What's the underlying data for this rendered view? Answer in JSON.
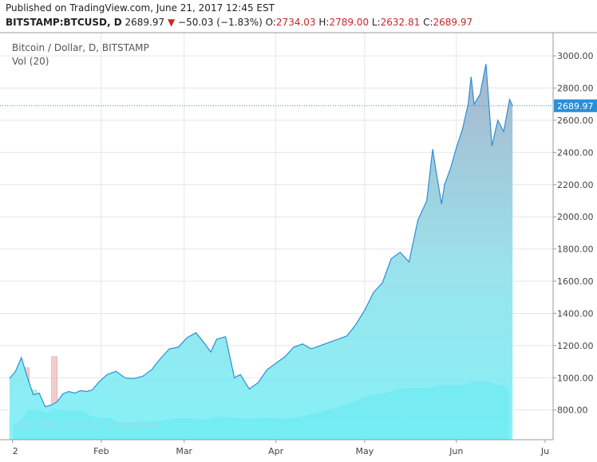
{
  "header": {
    "published_line": "Published on TradingView.com, June 21, 2017 12:45 EST",
    "symbol": "BITSTAMP:BTCUSD, D",
    "last": "2689.97",
    "change_arrow": "▼",
    "change": "−50.03 (−1.83%)",
    "open_label": "O:",
    "open": "2734.03",
    "high_label": "H:",
    "high": "2789.00",
    "low_label": "L:",
    "low": "2632.81",
    "close_label": "C:",
    "close": "2689.97"
  },
  "legend": {
    "series": "Bitcoin / Dollar, D, BITSTAMP",
    "volume": "Vol (20)"
  },
  "watermark": "BTCUSD chart by TradingView",
  "colors": {
    "line": "#2b8fd6",
    "area_top": "#a8b5cc",
    "area_bottom": "#86f1f7",
    "volume_up": "#b8f0c8",
    "volume_down": "#f2c4c4",
    "volume_fill": "#5ee8f0",
    "price_label_bg": "#2b8fd6",
    "grid": "#e6e6e6"
  },
  "chart_data": {
    "type": "area",
    "title": "Bitcoin / Dollar, D, BITSTAMP",
    "x_tick_labels": [
      "2",
      "Feb",
      "Mar",
      "Apr",
      "May",
      "Jun",
      "Ju"
    ],
    "y_ticks": [
      800,
      1000,
      1200,
      1400,
      1600,
      1800,
      2000,
      2200,
      2400,
      2600,
      2800,
      3000
    ],
    "y_tick_labels": [
      "800.00",
      "1000.00",
      "1200.00",
      "1400.00",
      "1600.00",
      "1800.00",
      "2000.00",
      "2200.00",
      "2400.00",
      "2600.00",
      "2800.00",
      "3000.00"
    ],
    "ylim": [
      650,
      3060
    ],
    "last_price": 2689.97,
    "last_price_label": "2689.97",
    "grid": true,
    "series": [
      {
        "x": [
          "2017-01-01",
          "2017-01-03",
          "2017-01-05",
          "2017-01-07",
          "2017-01-09",
          "2017-01-11",
          "2017-01-13",
          "2017-01-15",
          "2017-01-17",
          "2017-01-19",
          "2017-01-21",
          "2017-01-23",
          "2017-01-25",
          "2017-01-27",
          "2017-01-29",
          "2017-01-31",
          "2017-02-03",
          "2017-02-06",
          "2017-02-09",
          "2017-02-12",
          "2017-02-15",
          "2017-02-18",
          "2017-02-21",
          "2017-02-24",
          "2017-02-27",
          "2017-03-02",
          "2017-03-05",
          "2017-03-08",
          "2017-03-10",
          "2017-03-12",
          "2017-03-15",
          "2017-03-18",
          "2017-03-20",
          "2017-03-23",
          "2017-03-26",
          "2017-03-29",
          "2017-04-01",
          "2017-04-04",
          "2017-04-07",
          "2017-04-10",
          "2017-04-13",
          "2017-04-16",
          "2017-04-19",
          "2017-04-22",
          "2017-04-25",
          "2017-04-28",
          "2017-05-01",
          "2017-05-04",
          "2017-05-07",
          "2017-05-10",
          "2017-05-13",
          "2017-05-16",
          "2017-05-19",
          "2017-05-22",
          "2017-05-24",
          "2017-05-25",
          "2017-05-27",
          "2017-05-28",
          "2017-05-30",
          "2017-06-01",
          "2017-06-03",
          "2017-06-05",
          "2017-06-06",
          "2017-06-07",
          "2017-06-09",
          "2017-06-11",
          "2017-06-12",
          "2017-06-13",
          "2017-06-15",
          "2017-06-17",
          "2017-06-19",
          "2017-06-20"
        ],
        "y": [
          995,
          1040,
          1125,
          1005,
          895,
          905,
          820,
          830,
          850,
          900,
          915,
          905,
          920,
          915,
          925,
          970,
          1020,
          1040,
          1000,
          995,
          1010,
          1050,
          1120,
          1180,
          1190,
          1250,
          1280,
          1210,
          1160,
          1240,
          1255,
          1000,
          1020,
          930,
          970,
          1050,
          1090,
          1130,
          1190,
          1210,
          1180,
          1200,
          1220,
          1240,
          1260,
          1330,
          1420,
          1530,
          1590,
          1740,
          1780,
          1720,
          1980,
          2100,
          2420,
          2300,
          2080,
          2200,
          2300,
          2430,
          2540,
          2700,
          2870,
          2700,
          2760,
          2950,
          2700,
          2440,
          2600,
          2530,
          2730,
          2690
        ]
      }
    ],
    "volume": {
      "label": "Vol (20)",
      "bars": [
        40,
        48,
        130,
        90,
        50,
        40,
        150,
        45,
        55,
        50,
        40,
        35,
        45,
        40,
        38,
        42,
        48,
        55,
        60,
        50,
        45,
        40,
        70,
        60,
        55,
        45,
        45,
        50,
        50,
        90,
        60,
        55,
        50,
        40,
        45,
        50,
        55,
        60,
        58,
        62,
        70,
        75,
        80,
        85,
        90,
        95,
        100,
        110,
        115,
        120,
        160,
        120,
        115,
        110,
        130,
        150,
        140,
        125,
        120,
        150,
        160,
        140,
        130,
        125,
        145,
        170,
        180,
        140,
        120,
        110,
        100,
        90
      ]
    }
  }
}
